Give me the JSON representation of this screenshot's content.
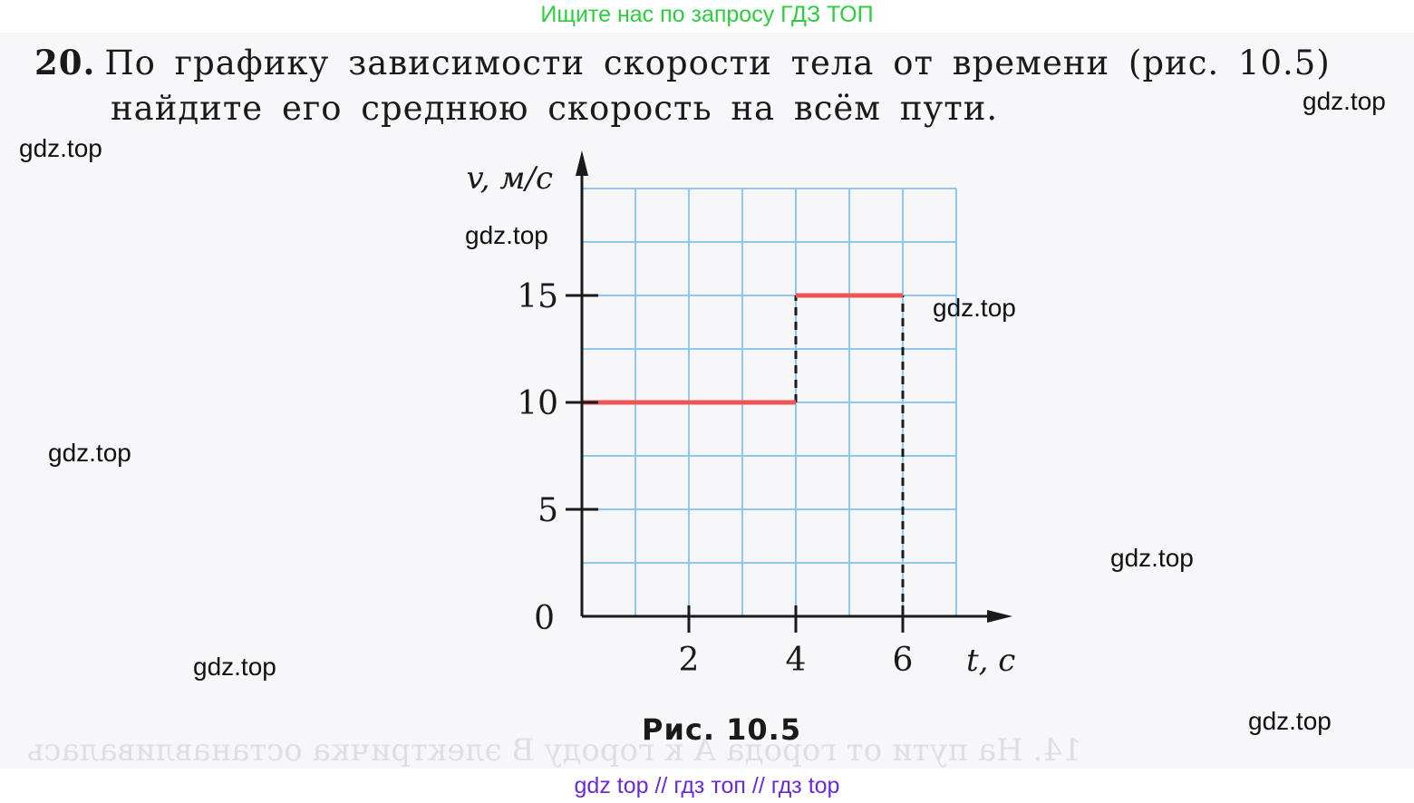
{
  "promo": {
    "top": "Ищите нас по запросу ГДЗ ТОП",
    "bottom": "gdz top  //  гдз топ  //  гдз top"
  },
  "problem": {
    "number": "20.",
    "line1": "По графику зависимости скорости тела от времени (рис. 10.5)",
    "line2": "найдите его среднюю скорость на всём пути."
  },
  "watermark": "gdz.top",
  "bleed_through": {
    "line1": "14. На пути от города А к городу В электричка останавливалась"
  },
  "figure_caption": "Рис.  10.5",
  "colors": {
    "graph_line": "#f05555",
    "grid": "#8fc8ee",
    "axis": "#1a1a1a",
    "promo_top": "#2ecc40",
    "promo_bottom": "#6a2bd6"
  },
  "chart_data": {
    "type": "line",
    "title": "",
    "xlabel": "t, с",
    "ylabel": "v, м/с",
    "xlim": [
      0,
      7
    ],
    "ylim": [
      0,
      20
    ],
    "grid": true,
    "x_ticks": [
      2,
      4,
      6
    ],
    "y_ticks": [
      5,
      10,
      15
    ],
    "origin_label": "0",
    "series": [
      {
        "segments": [
          {
            "x": [
              0,
              4
            ],
            "y": [
              10,
              10
            ]
          },
          {
            "x": [
              4,
              6
            ],
            "y": [
              15,
              15
            ]
          }
        ]
      }
    ],
    "dashed_guides": [
      {
        "x": [
          4,
          4
        ],
        "y": [
          10,
          15
        ]
      },
      {
        "x": [
          6,
          6
        ],
        "y": [
          0,
          15
        ]
      }
    ]
  }
}
